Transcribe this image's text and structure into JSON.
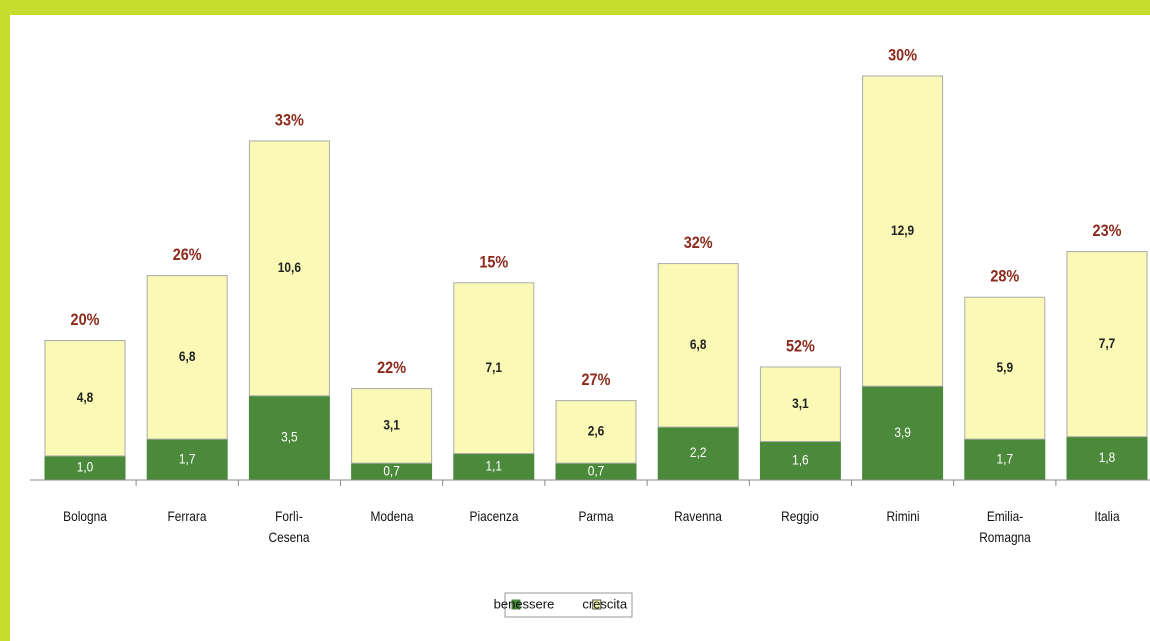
{
  "chart_data": {
    "type": "stacked_bar",
    "categories": [
      "Bologna",
      "Ferrara",
      "Forlì-Cesena",
      "Modena",
      "Piacenza",
      "Parma",
      "Ravenna",
      "Reggio",
      "Rimini",
      "Emilia-Romagna",
      "Italia"
    ],
    "series": [
      {
        "name": "benessere",
        "color": "#4b8a3b",
        "values": [
          1.0,
          1.7,
          3.5,
          0.7,
          1.1,
          0.7,
          2.2,
          1.6,
          3.9,
          1.7,
          1.8
        ],
        "value_labels": [
          "1,0",
          "1,7",
          "3,5",
          "0,7",
          "1,1",
          "0,7",
          "2,2",
          "1,6",
          "3,9",
          "1,7",
          "1,8"
        ]
      },
      {
        "name": "crescita",
        "color": "#fafab6",
        "values": [
          4.8,
          6.8,
          10.6,
          3.1,
          7.1,
          2.6,
          6.8,
          3.1,
          12.9,
          5.9,
          7.7
        ],
        "value_labels": [
          "4,8",
          "6,8",
          "10,6",
          "3,1",
          "7,1",
          "2,6",
          "6,8",
          "3,1",
          "12,9",
          "5,9",
          "7,7"
        ]
      }
    ],
    "annotations": [
      "20%",
      "26%",
      "33%",
      "22%",
      "15%",
      "27%",
      "32%",
      "52%",
      "30%",
      "28%",
      "23%"
    ],
    "legend": "bottom"
  }
}
